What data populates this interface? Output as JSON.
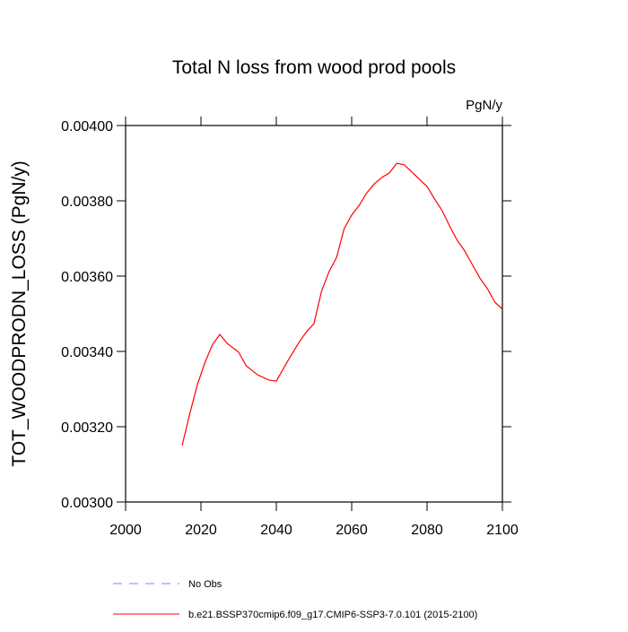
{
  "chart_data": {
    "type": "line",
    "title": "Total N loss from wood prod pools",
    "units": "PgN/y",
    "y_label": "TOT_WOODPRODN_LOSS  (PgN/y)",
    "x": [
      2015,
      2017,
      2019,
      2021,
      2023,
      2025,
      2027,
      2030,
      2032,
      2035,
      2038,
      2040,
      2043,
      2046,
      2048,
      2050,
      2052,
      2054,
      2056,
      2058,
      2060,
      2062,
      2064,
      2066,
      2068,
      2070,
      2072,
      2074,
      2076,
      2078,
      2080,
      2082,
      2084,
      2086,
      2088,
      2090,
      2092,
      2094,
      2096,
      2098,
      2100
    ],
    "series": [
      {
        "name": "b.e21.BSSP370cmip6.f09_g17.CMIP6-SSP3-7.0.101 (2015-2100)",
        "color": "#ff0000",
        "values": [
          0.00315,
          0.003233,
          0.00331,
          0.003369,
          0.003417,
          0.003445,
          0.003421,
          0.003398,
          0.003362,
          0.003338,
          0.003324,
          0.003321,
          0.003374,
          0.003424,
          0.003452,
          0.003474,
          0.00356,
          0.003612,
          0.00365,
          0.003726,
          0.003762,
          0.003788,
          0.003821,
          0.003845,
          0.003862,
          0.003874,
          0.0039,
          0.003895,
          0.003876,
          0.003857,
          0.003838,
          0.003805,
          0.003774,
          0.003733,
          0.003695,
          0.003667,
          0.003631,
          0.003595,
          0.003567,
          0.003531,
          0.003512
        ]
      }
    ],
    "reference": {
      "name": "No Obs",
      "color": "#8080ff",
      "dashed": true
    },
    "xlim": [
      2000,
      2100
    ],
    "xticks": [
      2000,
      2020,
      2040,
      2060,
      2080,
      2100
    ],
    "ylim": [
      0.003,
      0.004
    ],
    "yticks": [
      {
        "value": 0.003,
        "label": "0.00300"
      },
      {
        "value": 0.0032,
        "label": "0.00320"
      },
      {
        "value": 0.0034,
        "label": "0.00340"
      },
      {
        "value": 0.0036,
        "label": "0.00360"
      },
      {
        "value": 0.0038,
        "label": "0.00380"
      },
      {
        "value": 0.004,
        "label": "0.00400"
      }
    ],
    "grid": false
  }
}
